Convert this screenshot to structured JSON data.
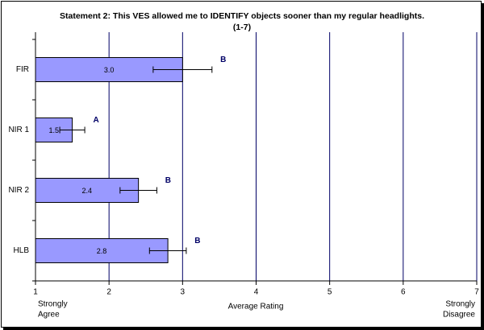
{
  "chart_data": {
    "type": "bar",
    "orientation": "horizontal",
    "title": [
      "Statement 2: This VES allowed me to IDENTIFY objects sooner than my regular headlights.",
      "(1-7)"
    ],
    "x_label": "Average Rating",
    "x_low_label": [
      "Strongly",
      "Agree"
    ],
    "x_high_label": [
      "Strongly",
      "Disagree"
    ],
    "categories": [
      "FIR",
      "NIR 1",
      "NIR 2",
      "HLB"
    ],
    "values": [
      3.0,
      1.5,
      2.4,
      2.8
    ],
    "value_labels": [
      "3.0",
      "1.5",
      "2.4",
      "2.8"
    ],
    "errors": [
      0.4,
      0.17,
      0.25,
      0.25
    ],
    "group_labels": [
      "B",
      "A",
      "B",
      "B"
    ],
    "color": "#9999ff",
    "grid_color": "#000066",
    "xlim": [
      1,
      7
    ],
    "xticks": [
      1,
      2,
      3,
      4,
      5,
      6,
      7
    ],
    "grid": true
  }
}
